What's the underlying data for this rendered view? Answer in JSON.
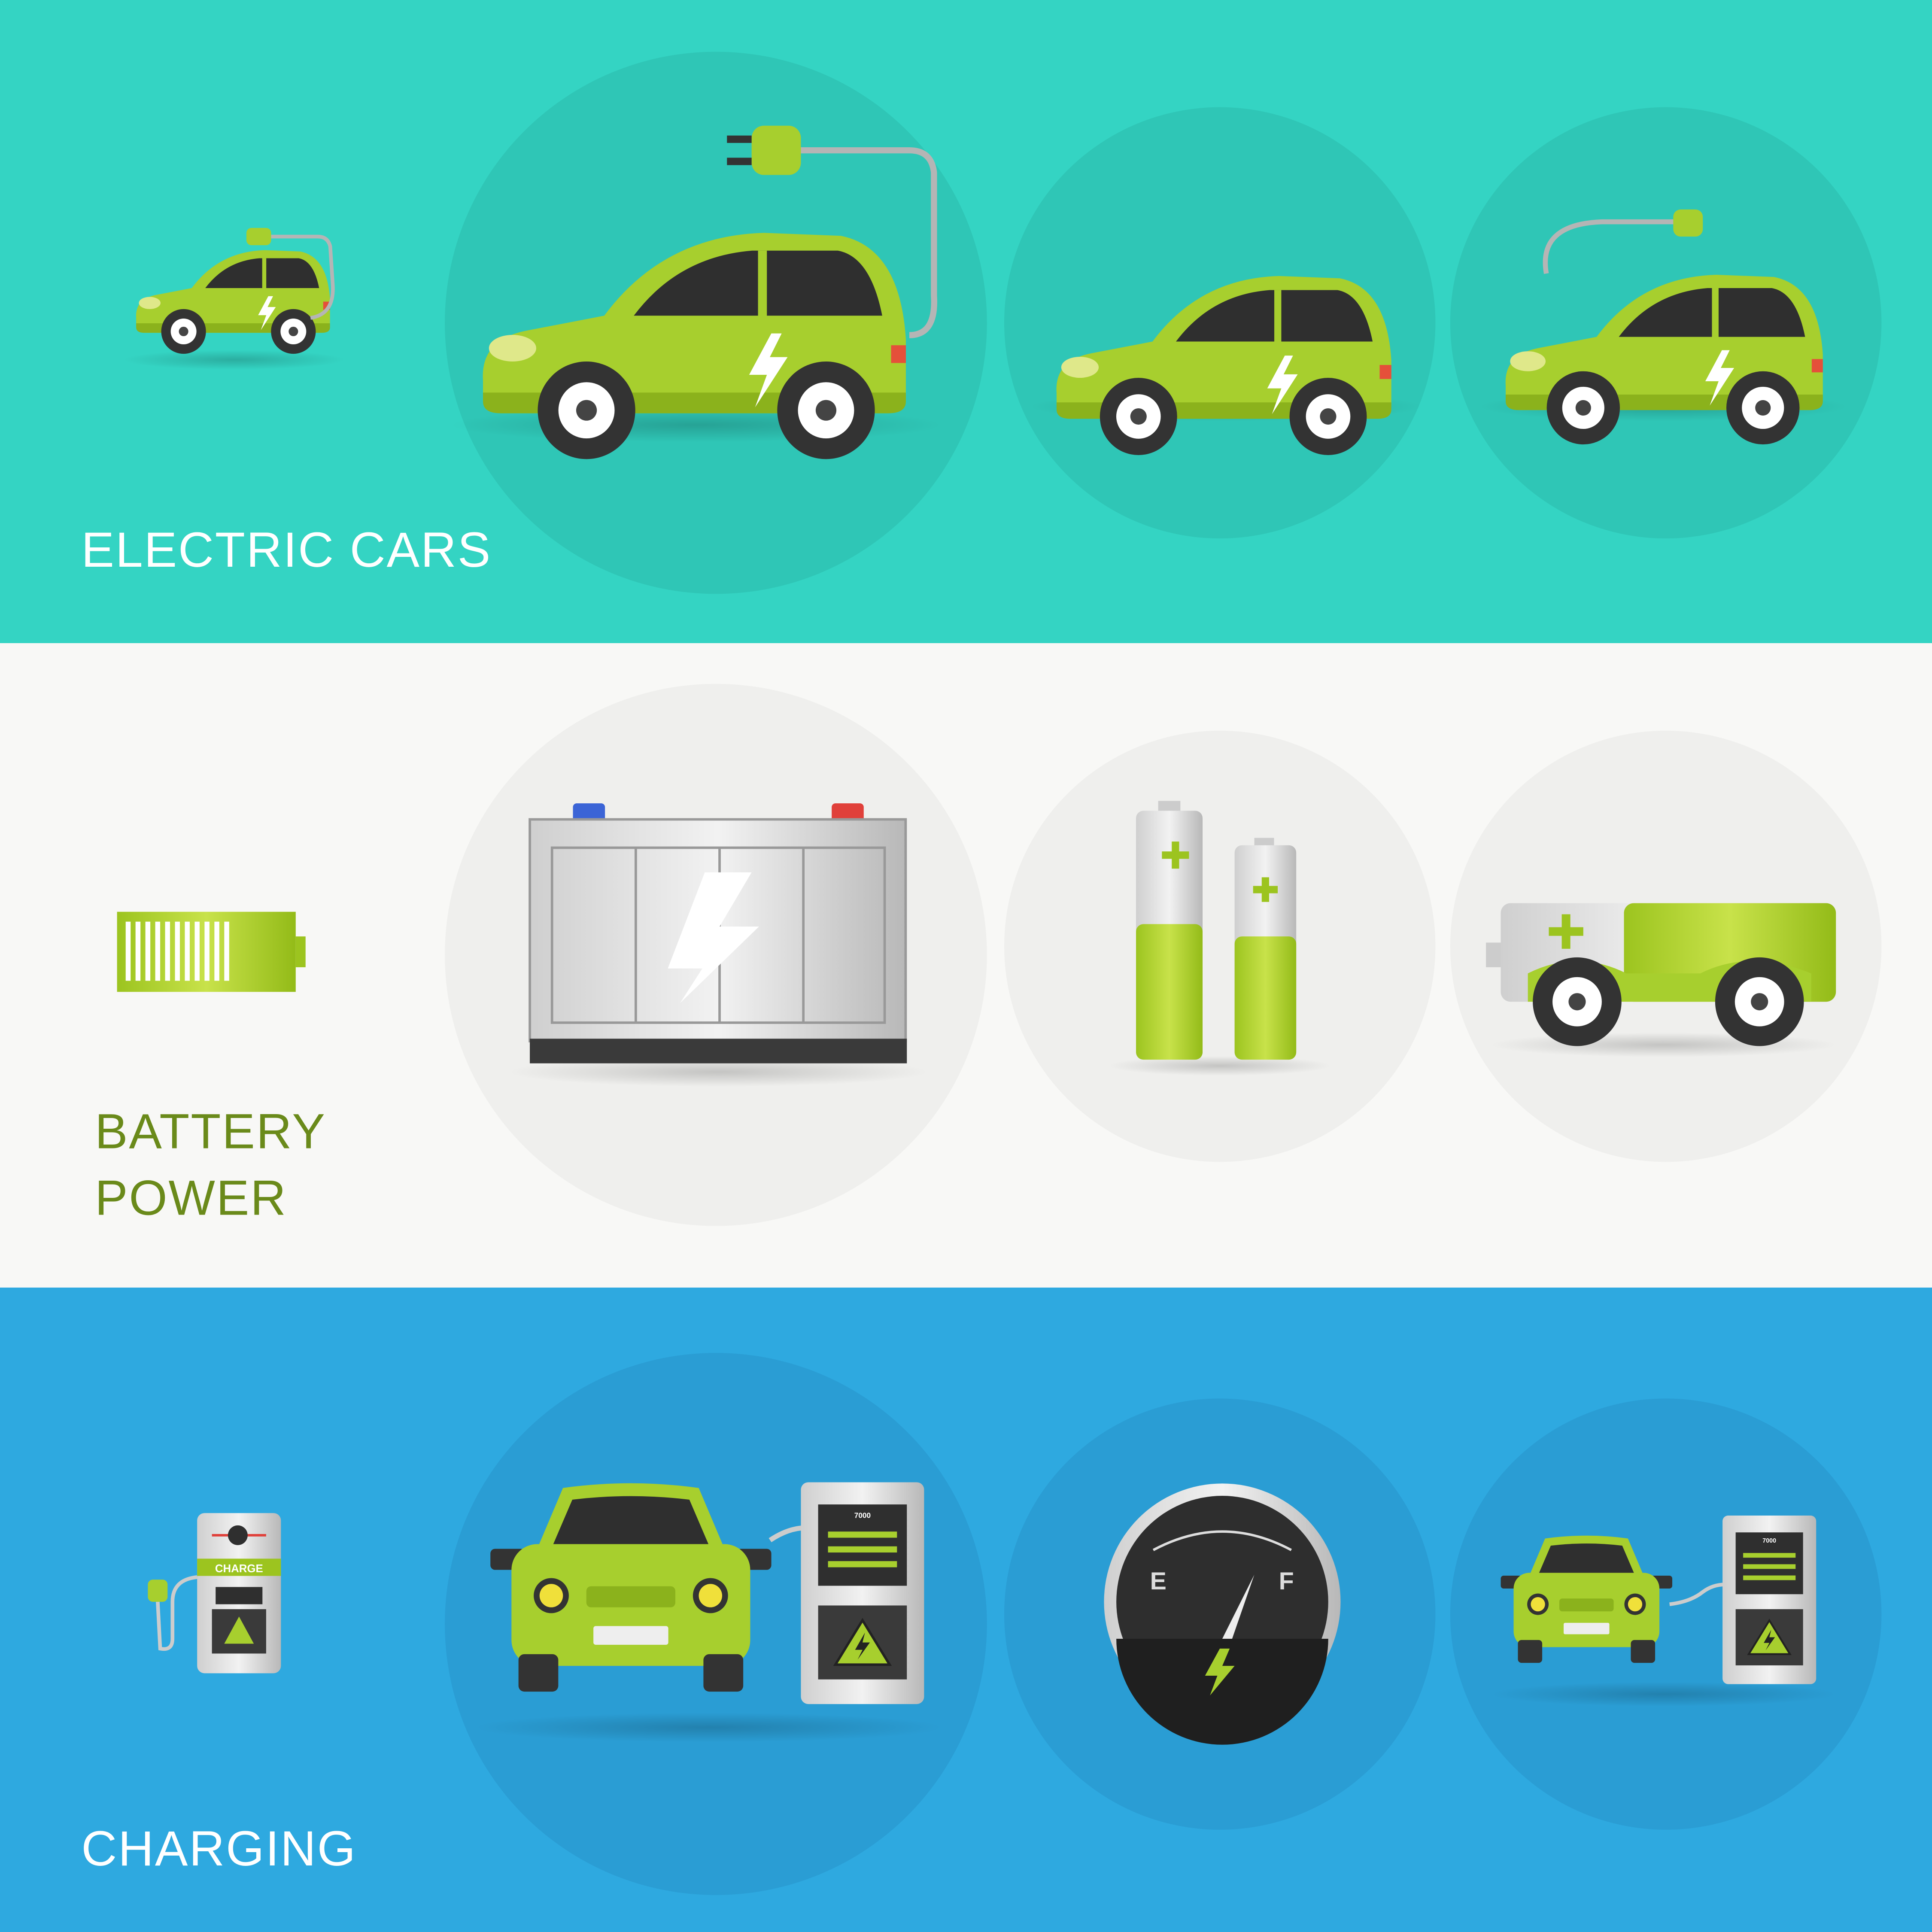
{
  "banners": [
    {
      "title_lines": [
        "ELECTRIC CARS"
      ]
    },
    {
      "title_lines": [
        "BATTERY",
        "POWER"
      ]
    },
    {
      "title_lines": [
        "CHARGING"
      ]
    }
  ],
  "icon_labels": {
    "station_sign": "CHARGE",
    "station_displays": [
      "7000",
      "7000"
    ],
    "gauge_empty": "E",
    "gauge_full": "F"
  }
}
